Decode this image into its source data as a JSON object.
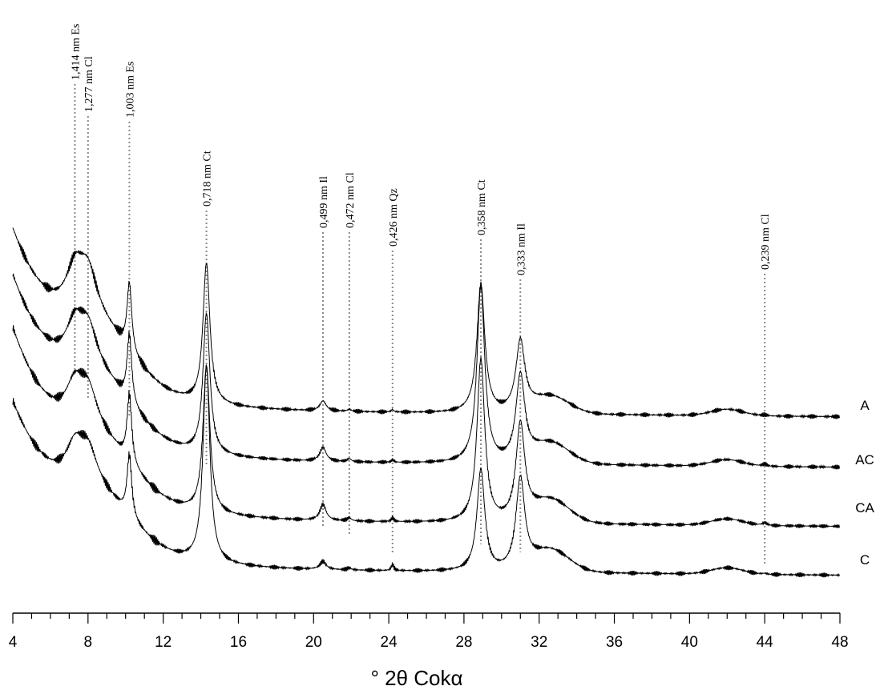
{
  "chart_data": {
    "type": "line",
    "xlabel": "° 2θ Cokα",
    "ylabel": "",
    "xlim": [
      4,
      48
    ],
    "x_ticks": [
      "4",
      "8",
      "12",
      "16",
      "20",
      "24",
      "28",
      "32",
      "36",
      "40",
      "44",
      "48"
    ],
    "grid": false,
    "peaks": [
      {
        "x": 7.3,
        "label": "1,414 nm Es"
      },
      {
        "x": 8.0,
        "label": "1,277 nm Cl"
      },
      {
        "x": 10.2,
        "label": "1,003 nm Es"
      },
      {
        "x": 14.3,
        "label": "0,718 nm Ct"
      },
      {
        "x": 20.5,
        "label": "0,499 nm Il"
      },
      {
        "x": 21.9,
        "label": "0,472 nm Cl"
      },
      {
        "x": 24.2,
        "label": "0,426 nm Qz"
      },
      {
        "x": 28.9,
        "label": "0,358 nm Ct"
      },
      {
        "x": 31.0,
        "label": "0,333 nm Il"
      },
      {
        "x": 44.0,
        "label": "0,239 nm Cl"
      }
    ],
    "series": [
      {
        "name": "A",
        "baseline": 0,
        "peaks": {
          "7.3": 1.0,
          "8.0": 1.0,
          "10.2": 1.0,
          "14.3": 1.0,
          "20.5": 0.25,
          "21.9": 0.1,
          "24.2": 0.1,
          "28.9": 0.95,
          "31.0": 0.7,
          "44.0": 0.05
        }
      },
      {
        "name": "AC",
        "baseline": 1,
        "peaks": {
          "7.3": 0.9,
          "8.0": 0.9,
          "10.2": 1.0,
          "14.3": 1.0,
          "20.5": 0.35,
          "21.9": 0.15,
          "24.2": 0.1,
          "28.9": 1.3,
          "31.0": 0.85,
          "44.0": 0.12
        }
      },
      {
        "name": "CA",
        "baseline": 2,
        "peaks": {
          "7.3": 0.85,
          "8.0": 0.85,
          "10.2": 1.0,
          "14.3": 1.05,
          "20.5": 0.4,
          "21.9": 0.15,
          "24.2": 0.15,
          "28.9": 1.2,
          "31.0": 0.95,
          "44.0": 0.15
        }
      },
      {
        "name": "C",
        "baseline": 3,
        "peaks": {
          "7.3": 0.8,
          "8.0": 0.8,
          "10.2": 0.9,
          "14.3": 1.4,
          "20.5": 0.2,
          "21.9": 0.1,
          "24.2": 0.25,
          "28.9": 0.75,
          "31.0": 0.9,
          "44.0": 0.05
        }
      }
    ]
  },
  "colors": {
    "line": "#000000",
    "dotted": "#8a8a8a"
  }
}
